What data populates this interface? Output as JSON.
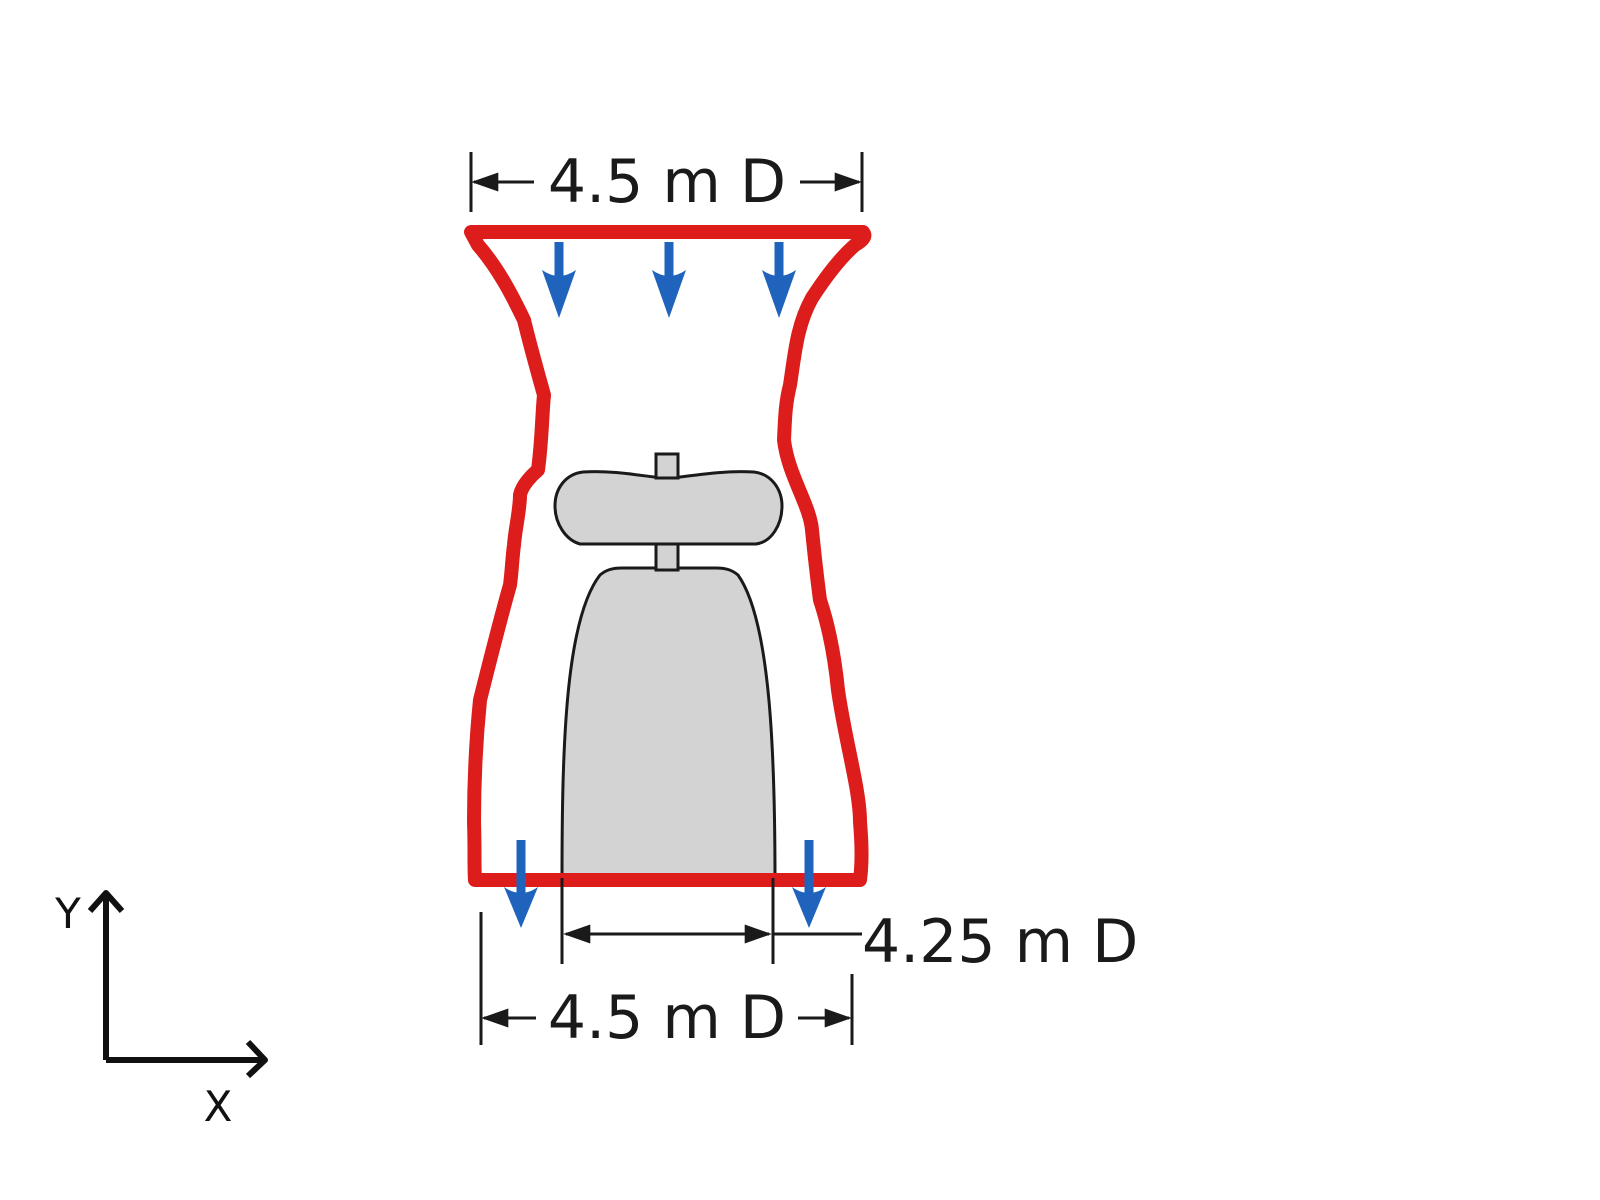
{
  "labels": {
    "top_diameter": "4.5 m D",
    "inner_diameter": "4.25 m D",
    "bottom_diameter": "4.5 m D",
    "y_axis": "Y",
    "x_axis": "X"
  },
  "colors": {
    "enclosure": "#dd1c1c",
    "flow_arrow": "#1f63bd",
    "body_fill": "#d3d3d3",
    "body_stroke": "#1a1a1a",
    "dimension": "#1a1a1a",
    "background": "#ffffff"
  },
  "icons": {
    "flow": "down-arrow-icon",
    "dimension_ends": "double-headed-arrow-icon",
    "axes": "xy-axes-icon"
  }
}
